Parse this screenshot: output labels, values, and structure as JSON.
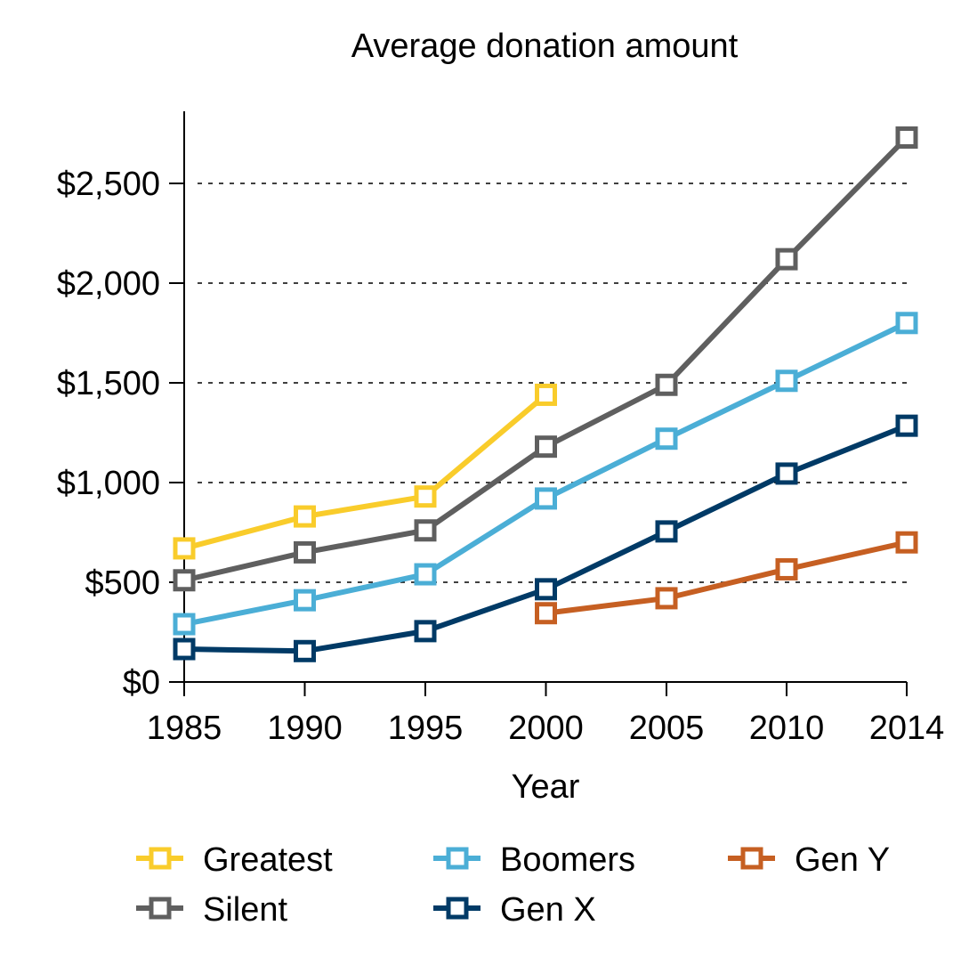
{
  "chart_data": {
    "type": "line",
    "title": "Average donation amount",
    "xlabel": "Year",
    "ylabel": "",
    "categories": [
      "1985",
      "1990",
      "1995",
      "2000",
      "2005",
      "2010",
      "2014"
    ],
    "ylim": [
      0,
      2800
    ],
    "yticks": [
      0,
      500,
      1000,
      1500,
      2000,
      2500
    ],
    "ytick_labels": [
      "$0",
      "$500",
      "$1,000",
      "$1,500",
      "$2,000",
      "$2,500"
    ],
    "grid": "horizontal dashed",
    "legend_position": "bottom",
    "series": [
      {
        "name": "Greatest",
        "color": "#F9CC2B",
        "values": [
          670,
          830,
          930,
          1440,
          null,
          null,
          null
        ]
      },
      {
        "name": "Silent",
        "color": "#5F5F5F",
        "values": [
          510,
          650,
          760,
          1180,
          1490,
          2120,
          2730
        ]
      },
      {
        "name": "Boomers",
        "color": "#4BAED6",
        "values": [
          290,
          410,
          540,
          920,
          1220,
          1510,
          1800
        ]
      },
      {
        "name": "Gen X",
        "color": "#003A66",
        "values": [
          165,
          155,
          255,
          465,
          755,
          1045,
          1285
        ]
      },
      {
        "name": "Gen Y",
        "color": "#C65F22",
        "values": [
          null,
          null,
          null,
          345,
          420,
          565,
          700
        ]
      }
    ]
  }
}
